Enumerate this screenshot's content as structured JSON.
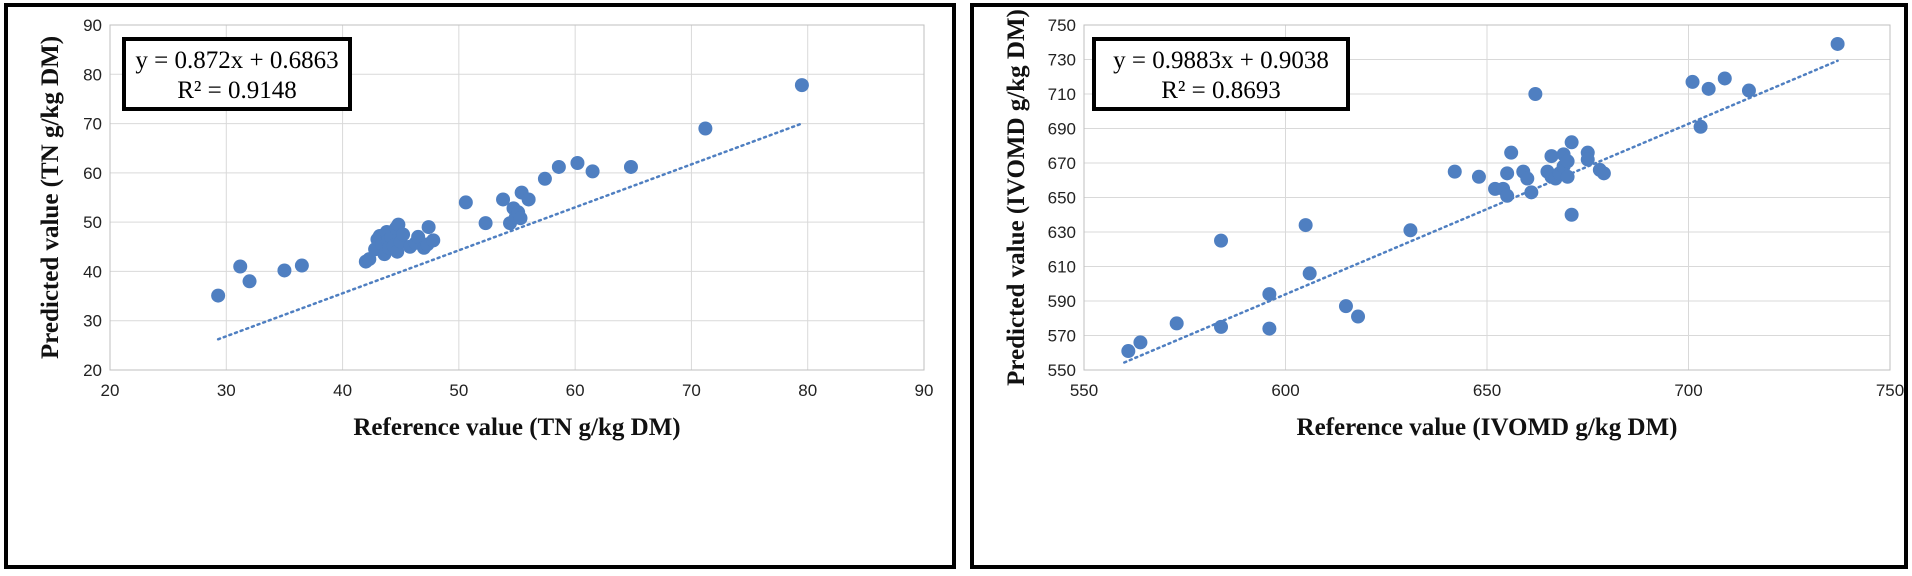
{
  "chart_data": [
    {
      "type": "scatter",
      "xlabel": "Reference  value (TN g/kg DM)",
      "ylabel": "Predicted  value (TN g/kg DM)",
      "xlim": [
        20,
        90
      ],
      "ylim": [
        20,
        90
      ],
      "xticks": [
        20,
        30,
        40,
        50,
        60,
        70,
        80,
        90
      ],
      "yticks": [
        20,
        30,
        40,
        50,
        60,
        70,
        80,
        90
      ],
      "grid": true,
      "trendline": {
        "slope": 0.872,
        "intercept": 0.6863,
        "style": "dotted",
        "x_range": [
          29.3,
          79.5
        ]
      },
      "annotation": {
        "equation": "y = 0.872x + 0.6863",
        "r2": "R² = 0.9148"
      },
      "colors": {
        "points": "#4f7fc1",
        "trendline": "#4f7fc1"
      },
      "points": [
        [
          29.3,
          35.1
        ],
        [
          31.2,
          41.0
        ],
        [
          32.0,
          38.0
        ],
        [
          35.0,
          40.2
        ],
        [
          36.5,
          41.2
        ],
        [
          42.0,
          42.0
        ],
        [
          42.3,
          42.5
        ],
        [
          42.8,
          44.5
        ],
        [
          43.0,
          46.5
        ],
        [
          43.2,
          47.2
        ],
        [
          43.4,
          45.5
        ],
        [
          43.6,
          43.5
        ],
        [
          43.8,
          48.0
        ],
        [
          43.9,
          46.2
        ],
        [
          44.0,
          44.8
        ],
        [
          44.2,
          47.0
        ],
        [
          44.4,
          45.2
        ],
        [
          44.6,
          48.8
        ],
        [
          44.7,
          44.0
        ],
        [
          44.8,
          49.5
        ],
        [
          45.0,
          46.0
        ],
        [
          45.2,
          47.5
        ],
        [
          45.8,
          45.0
        ],
        [
          46.3,
          45.8
        ],
        [
          46.5,
          47.0
        ],
        [
          47.0,
          44.8
        ],
        [
          47.3,
          45.5
        ],
        [
          47.4,
          49.0
        ],
        [
          47.8,
          46.3
        ],
        [
          50.6,
          54.0
        ],
        [
          52.3,
          49.8
        ],
        [
          53.8,
          54.6
        ],
        [
          54.4,
          49.8
        ],
        [
          54.7,
          52.8
        ],
        [
          54.9,
          51.0
        ],
        [
          55.1,
          52.0
        ],
        [
          55.3,
          50.8
        ],
        [
          55.4,
          56.0
        ],
        [
          56.0,
          54.6
        ],
        [
          57.4,
          58.8
        ],
        [
          58.6,
          61.2
        ],
        [
          60.2,
          62.0
        ],
        [
          61.5,
          60.3
        ],
        [
          64.8,
          61.2
        ],
        [
          71.2,
          69.0
        ],
        [
          79.5,
          77.8
        ]
      ]
    },
    {
      "type": "scatter",
      "xlabel": "Reference value (IVOMD g/kg DM)",
      "ylabel": "Predicted value (IVOMD g/kg DM)",
      "xlim": [
        550,
        750
      ],
      "ylim": [
        550,
        750
      ],
      "xticks": [
        550,
        600,
        650,
        700,
        750
      ],
      "yticks": [
        550,
        570,
        590,
        610,
        630,
        650,
        670,
        690,
        710,
        730,
        750
      ],
      "grid": true,
      "trendline": {
        "slope": 0.9883,
        "intercept": 0.9038,
        "style": "dotted",
        "x_range": [
          560,
          737
        ]
      },
      "annotation": {
        "equation": "y = 0.9883x + 0.9038",
        "r2": "R² = 0.8693"
      },
      "colors": {
        "points": "#4f7fc1",
        "trendline": "#4f7fc1"
      },
      "points": [
        [
          561,
          561
        ],
        [
          564,
          566
        ],
        [
          573,
          577
        ],
        [
          584,
          575
        ],
        [
          584,
          625
        ],
        [
          596,
          574
        ],
        [
          596,
          594
        ],
        [
          605,
          634
        ],
        [
          606,
          606
        ],
        [
          615,
          587
        ],
        [
          618,
          581
        ],
        [
          631,
          631
        ],
        [
          642,
          665
        ],
        [
          648,
          662
        ],
        [
          652,
          655
        ],
        [
          654,
          655
        ],
        [
          655,
          651
        ],
        [
          655,
          664
        ],
        [
          656,
          676
        ],
        [
          659,
          665
        ],
        [
          660,
          661
        ],
        [
          661,
          653
        ],
        [
          662,
          710
        ],
        [
          665,
          665
        ],
        [
          666,
          674
        ],
        [
          666,
          662
        ],
        [
          667,
          661
        ],
        [
          668,
          664
        ],
        [
          669,
          668
        ],
        [
          669,
          675
        ],
        [
          670,
          662
        ],
        [
          670,
          671
        ],
        [
          671,
          682
        ],
        [
          671,
          640
        ],
        [
          675,
          676
        ],
        [
          675,
          672
        ],
        [
          678,
          666
        ],
        [
          679,
          664
        ],
        [
          701,
          717
        ],
        [
          703,
          691
        ],
        [
          705,
          713
        ],
        [
          709,
          719
        ],
        [
          715,
          712
        ],
        [
          737,
          739
        ]
      ]
    }
  ]
}
